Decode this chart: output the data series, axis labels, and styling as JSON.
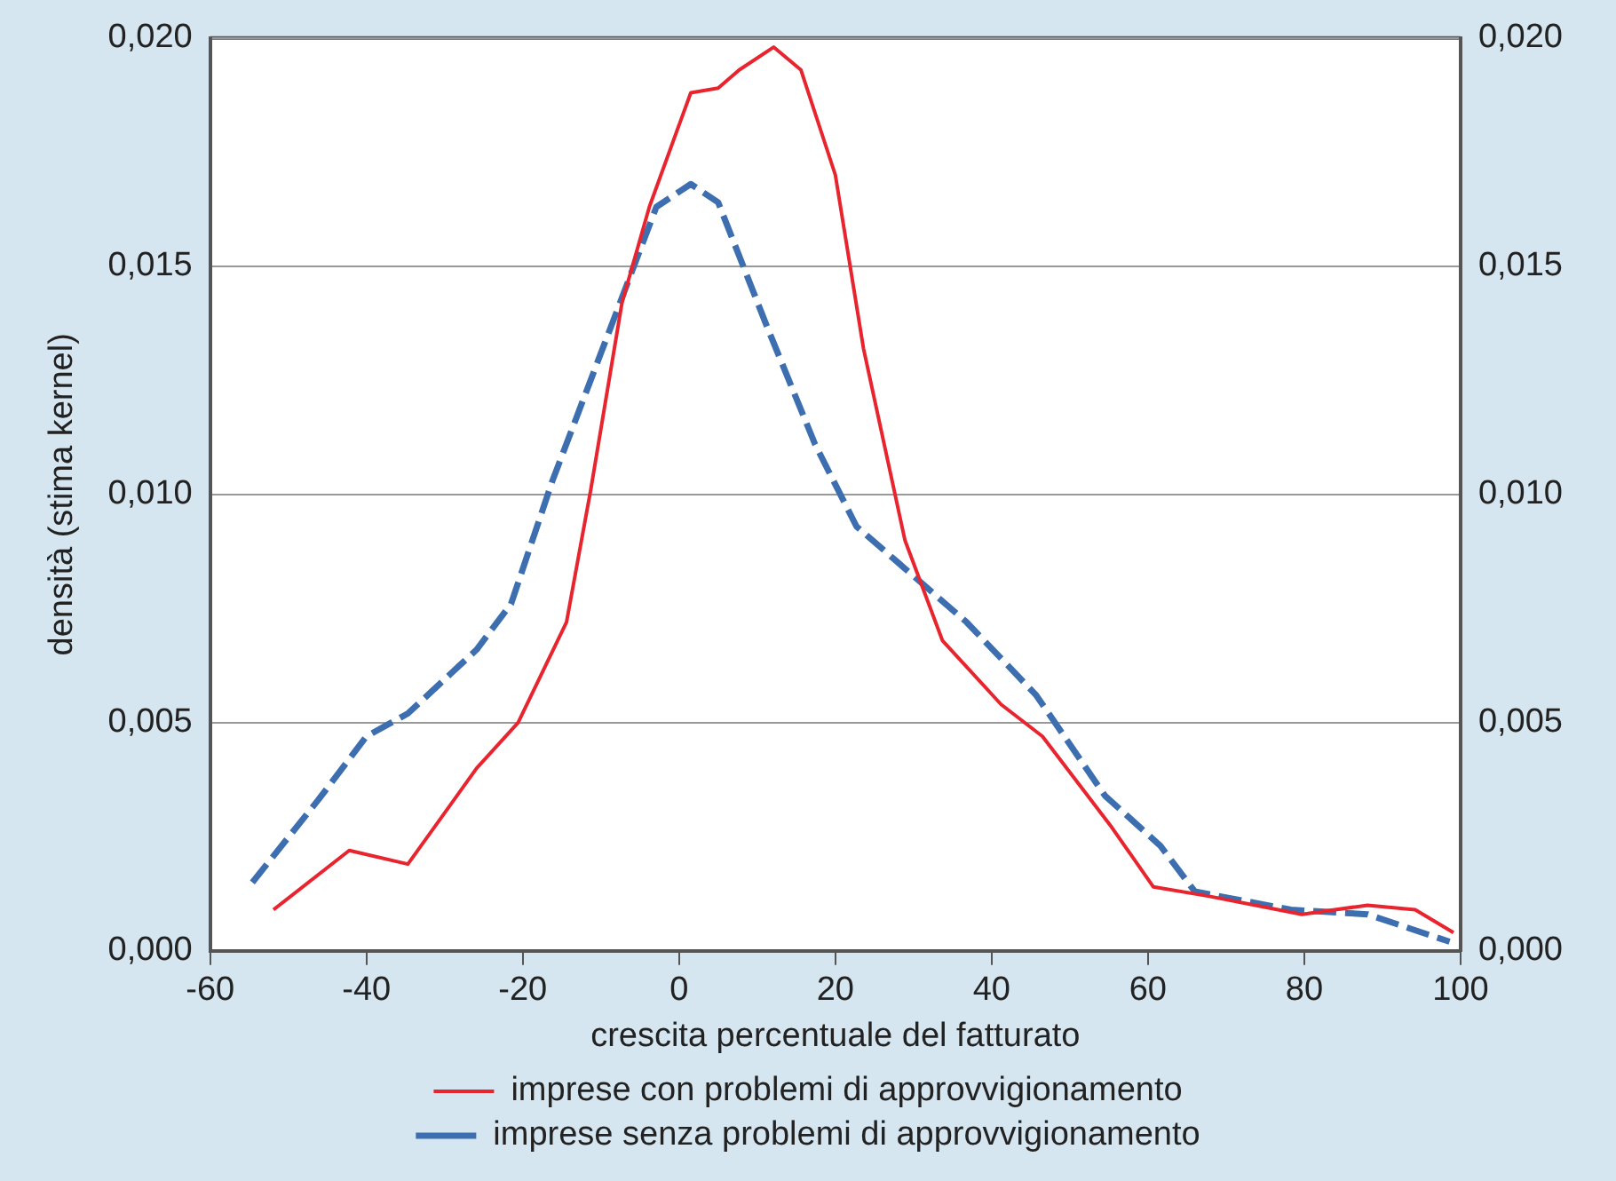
{
  "chart_data": {
    "type": "line",
    "xlabel": "crescita percentuale del fatturato",
    "ylabel": "densità (stima kernel)",
    "xlim": [
      -60,
      100
    ],
    "xticks": [
      -60,
      -40,
      -20,
      0,
      20,
      40,
      60,
      80,
      100
    ],
    "ylim": [
      0,
      0.02
    ],
    "yticks": [
      {
        "value": 0,
        "label": "0,000"
      },
      {
        "value": 0.005,
        "label": "0,005"
      },
      {
        "value": 0.01,
        "label": "0,010"
      },
      {
        "value": 0.015,
        "label": "0,015"
      },
      {
        "value": 0.02,
        "label": "0,020"
      }
    ],
    "y2lim": [
      0,
      0.02
    ],
    "y2ticks": [
      {
        "value": 0,
        "label": "0,000"
      },
      {
        "value": 0.005,
        "label": "0,005"
      },
      {
        "value": 0.01,
        "label": "0,010"
      },
      {
        "value": 0.015,
        "label": "0,015"
      },
      {
        "value": 0.02,
        "label": "0,020"
      }
    ],
    "grid": "y",
    "legend": "bottom",
    "marker": "none",
    "series": [
      {
        "name": "imprese con problemi di approvvigionamento",
        "color": "#e8252f",
        "line_style": "solid",
        "x": [
          -51.9,
          -42.2,
          -34.7,
          -25.9,
          -20.6,
          -14.4,
          -11.3,
          -7.3,
          -3.8,
          1.5,
          5.0,
          7.7,
          12.1,
          15.6,
          20.0,
          23.6,
          28.9,
          33.7,
          41.2,
          46.5,
          55.4,
          60.7,
          67.7,
          79.7,
          88.1,
          94.2,
          99.1
        ],
        "values": [
          0.0009,
          0.0022,
          0.0019,
          0.004,
          0.005,
          0.0072,
          0.0101,
          0.0142,
          0.0163,
          0.0188,
          0.0189,
          0.0193,
          0.0198,
          0.0193,
          0.017,
          0.0132,
          0.009,
          0.0068,
          0.0054,
          0.0047,
          0.0027,
          0.0014,
          0.0012,
          0.0008,
          0.001,
          0.0009,
          0.0004
        ]
      },
      {
        "name": "imprese senza problemi di approvvigionamento",
        "color": "#3d6fb0",
        "line_style": "dashed",
        "x": [
          -54.6,
          -46.2,
          -40.0,
          -34.7,
          -25.9,
          -21.5,
          -16.2,
          -9.1,
          -2.9,
          1.5,
          5.0,
          11.2,
          17.4,
          22.7,
          36.8,
          45.7,
          54.5,
          61.6,
          66.0,
          78.3,
          88.1,
          98.6
        ],
        "values": [
          0.0015,
          0.0033,
          0.0047,
          0.0052,
          0.0066,
          0.0076,
          0.0103,
          0.0135,
          0.0163,
          0.0168,
          0.0164,
          0.0137,
          0.0111,
          0.0093,
          0.0072,
          0.0056,
          0.0034,
          0.0023,
          0.0013,
          0.0009,
          0.0008,
          0.0002
        ]
      }
    ]
  }
}
